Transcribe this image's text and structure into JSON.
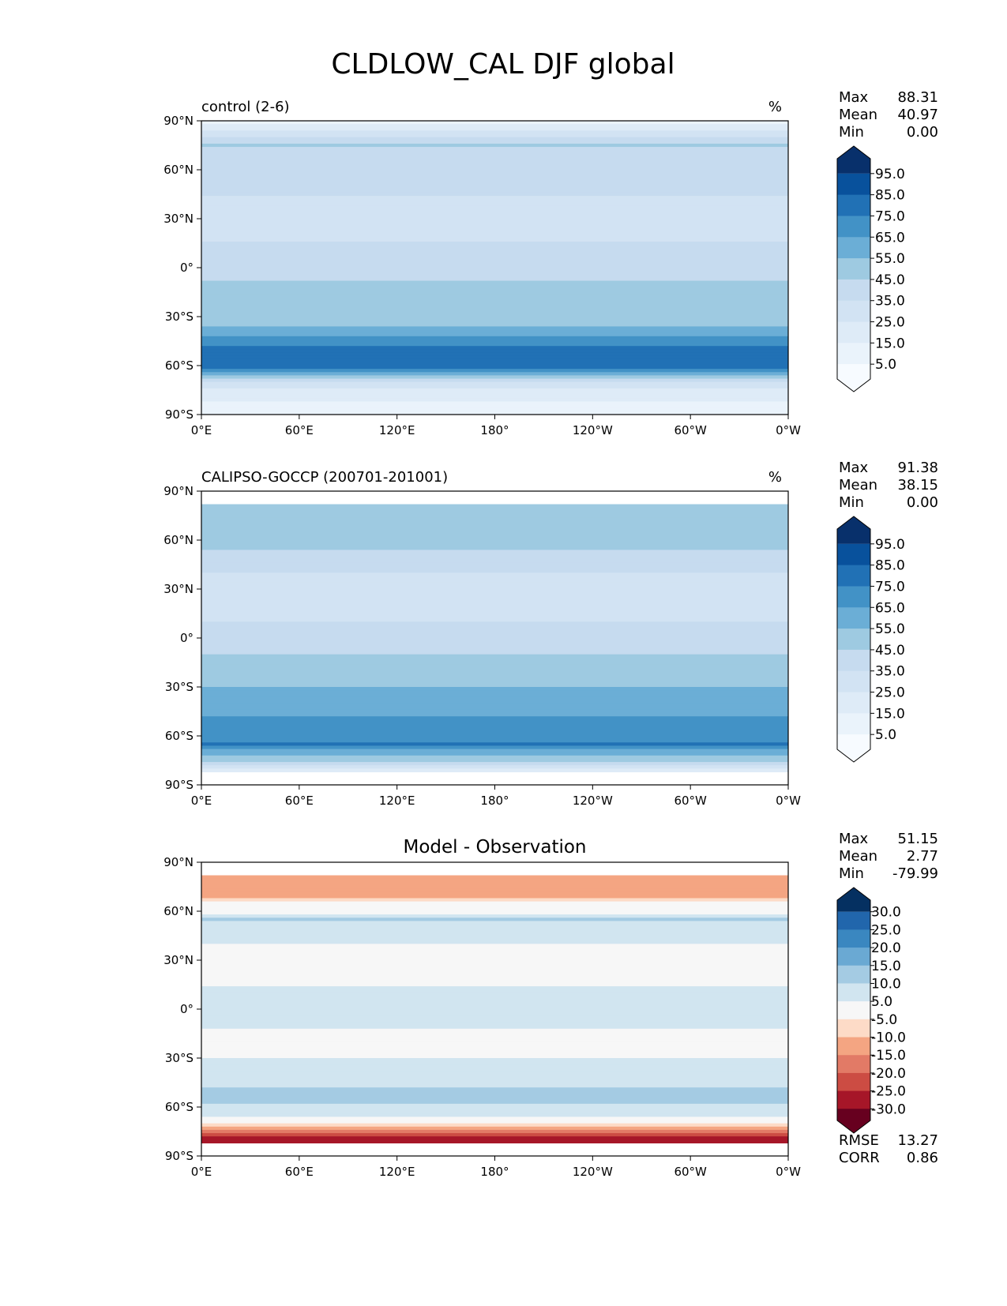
{
  "chart_data": {
    "type": "heatmap",
    "title": "CLDLOW_CAL DJF global",
    "x_ticks": [
      "0°E",
      "60°E",
      "120°E",
      "180°",
      "120°W",
      "60°W",
      "0°W"
    ],
    "y_ticks": [
      "90°N",
      "60°N",
      "30°N",
      "0°",
      "30°S",
      "60°S",
      "90°S"
    ],
    "xlim": [
      0,
      360
    ],
    "ylim": [
      -90,
      90
    ],
    "panels": [
      {
        "title_left": "control (2-6)",
        "title_center": "",
        "units": "%",
        "stats": [
          {
            "label": "Max",
            "value": "88.31"
          },
          {
            "label": "Mean",
            "value": "40.97"
          },
          {
            "label": "Min",
            "value": "0.00"
          }
        ],
        "colorbar_labels": [
          "95.0",
          "85.0",
          "75.0",
          "65.0",
          "55.0",
          "45.0",
          "35.0",
          "25.0",
          "15.0",
          "5.0"
        ],
        "colorbar_colors": [
          "#08306b",
          "#08519c",
          "#2171b5",
          "#4292c6",
          "#6baed6",
          "#9ecae1",
          "#c6dbef",
          "#d2e3f3",
          "#deebf7",
          "#eaf3fb",
          "#f7fbff"
        ],
        "extra_stats": [],
        "lat_valid": [
          -90,
          90
        ],
        "grid_lat_profile": [
          {
            "lat": 90,
            "value": 8
          },
          {
            "lat": 75,
            "value": 45
          },
          {
            "lat": 55,
            "value": 40
          },
          {
            "lat": 35,
            "value": 30
          },
          {
            "lat": 15,
            "value": 35
          },
          {
            "lat": 0,
            "value": 40
          },
          {
            "lat": -15,
            "value": 50
          },
          {
            "lat": -30,
            "value": 45
          },
          {
            "lat": -50,
            "value": 78
          },
          {
            "lat": -60,
            "value": 80
          },
          {
            "lat": -70,
            "value": 30
          },
          {
            "lat": -90,
            "value": 5
          }
        ]
      },
      {
        "title_left": "CALIPSO-GOCCP (200701-201001)",
        "title_center": "",
        "units": "%",
        "stats": [
          {
            "label": "Max",
            "value": "91.38"
          },
          {
            "label": "Mean",
            "value": "38.15"
          },
          {
            "label": "Min",
            "value": "0.00"
          }
        ],
        "colorbar_labels": [
          "95.0",
          "85.0",
          "75.0",
          "65.0",
          "55.0",
          "45.0",
          "35.0",
          "25.0",
          "15.0",
          "5.0"
        ],
        "colorbar_colors": [
          "#08306b",
          "#08519c",
          "#2171b5",
          "#4292c6",
          "#6baed6",
          "#9ecae1",
          "#c6dbef",
          "#d2e3f3",
          "#deebf7",
          "#eaf3fb",
          "#f7fbff"
        ],
        "extra_stats": [],
        "lat_valid": [
          -82,
          82
        ],
        "grid_lat_profile": [
          {
            "lat": 82,
            "value": 55
          },
          {
            "lat": 60,
            "value": 50
          },
          {
            "lat": 40,
            "value": 35
          },
          {
            "lat": 20,
            "value": 30
          },
          {
            "lat": 0,
            "value": 40
          },
          {
            "lat": -20,
            "value": 50
          },
          {
            "lat": -40,
            "value": 60
          },
          {
            "lat": -55,
            "value": 70
          },
          {
            "lat": -65,
            "value": 75
          },
          {
            "lat": -75,
            "value": 45
          },
          {
            "lat": -82,
            "value": 10
          }
        ]
      },
      {
        "title_left": "",
        "title_center": "Model - Observation",
        "units": "",
        "stats": [
          {
            "label": "Max",
            "value": "51.15"
          },
          {
            "label": "Mean",
            "value": "2.77"
          },
          {
            "label": "Min",
            "value": "-79.99"
          }
        ],
        "colorbar_labels": [
          "30.0",
          "25.0",
          "20.0",
          "15.0",
          "10.0",
          "5.0",
          "-5.0",
          "-10.0",
          "-15.0",
          "-20.0",
          "-25.0",
          "-30.0"
        ],
        "colorbar_colors": [
          "#053061",
          "#2166ac",
          "#3a87c0",
          "#6aa9d3",
          "#a4cbe3",
          "#d1e5f0",
          "#f7f7f7",
          "#fddbc7",
          "#f4a582",
          "#e27a66",
          "#cc4c43",
          "#a61628",
          "#67001f"
        ],
        "extra_stats": [
          {
            "label": "RMSE",
            "value": "13.27"
          },
          {
            "label": "CORR",
            "value": "0.86"
          }
        ],
        "lat_valid": [
          -82,
          82
        ],
        "grid_lat_profile": [
          {
            "lat": 82,
            "value": -15
          },
          {
            "lat": 70,
            "value": -12
          },
          {
            "lat": 55,
            "value": 10
          },
          {
            "lat": 40,
            "value": 5
          },
          {
            "lat": 25,
            "value": -5
          },
          {
            "lat": 10,
            "value": 8
          },
          {
            "lat": 0,
            "value": 10
          },
          {
            "lat": -20,
            "value": 2
          },
          {
            "lat": -40,
            "value": 8
          },
          {
            "lat": -55,
            "value": 12
          },
          {
            "lat": -65,
            "value": 5
          },
          {
            "lat": -75,
            "value": -20
          },
          {
            "lat": -82,
            "value": -30
          }
        ]
      }
    ],
    "grid": false,
    "legend": "right"
  }
}
